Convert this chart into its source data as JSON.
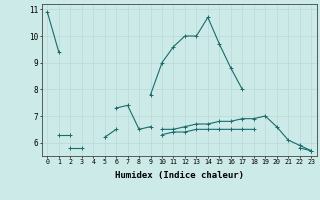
{
  "title": "",
  "xlabel": "Humidex (Indice chaleur)",
  "xlim": [
    -0.5,
    23.5
  ],
  "ylim": [
    5.5,
    11.2
  ],
  "yticks": [
    6,
    7,
    8,
    9,
    10,
    11
  ],
  "xticks": [
    0,
    1,
    2,
    3,
    4,
    5,
    6,
    7,
    8,
    9,
    10,
    11,
    12,
    13,
    14,
    15,
    16,
    17,
    18,
    19,
    20,
    21,
    22,
    23
  ],
  "bg_color": "#cceae8",
  "grid_color": "#b8d8d6",
  "line_color": "#1a6b6b",
  "series": [
    [
      10.9,
      9.4,
      null,
      null,
      null,
      null,
      null,
      null,
      null,
      7.8,
      9.0,
      9.6,
      10.0,
      10.0,
      10.7,
      9.7,
      8.8,
      8.0,
      null,
      null,
      null,
      null,
      null,
      null
    ],
    [
      null,
      null,
      null,
      null,
      null,
      null,
      7.3,
      7.4,
      6.5,
      6.6,
      null,
      null,
      null,
      null,
      null,
      null,
      null,
      null,
      null,
      null,
      null,
      null,
      null,
      null
    ],
    [
      null,
      6.3,
      6.3,
      null,
      null,
      6.2,
      6.5,
      null,
      null,
      null,
      6.5,
      6.5,
      6.6,
      6.7,
      6.7,
      6.8,
      6.8,
      6.9,
      6.9,
      7.0,
      6.6,
      6.1,
      5.9,
      5.7
    ],
    [
      null,
      null,
      null,
      null,
      null,
      null,
      null,
      null,
      null,
      null,
      6.3,
      6.4,
      6.4,
      6.5,
      6.5,
      6.5,
      6.5,
      6.5,
      6.5,
      null,
      null,
      null,
      null,
      null
    ],
    [
      null,
      null,
      5.8,
      5.8,
      null,
      null,
      null,
      null,
      null,
      null,
      null,
      null,
      null,
      null,
      null,
      null,
      null,
      null,
      null,
      null,
      null,
      null,
      null,
      null
    ],
    [
      null,
      null,
      null,
      null,
      null,
      null,
      null,
      null,
      null,
      null,
      null,
      null,
      null,
      null,
      null,
      null,
      null,
      null,
      null,
      null,
      null,
      null,
      5.8,
      5.7
    ]
  ]
}
